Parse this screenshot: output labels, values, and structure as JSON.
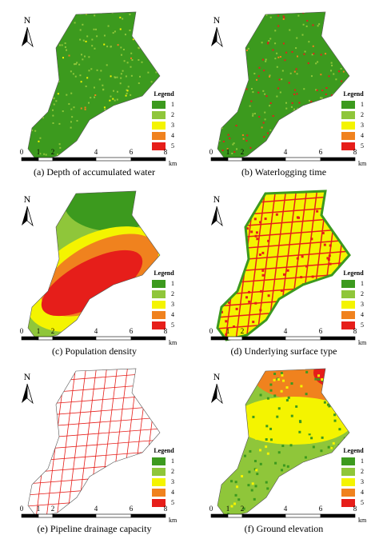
{
  "north": "N",
  "legend_title": "Legend",
  "legend_items": [
    "1",
    "2",
    "3",
    "4",
    "5"
  ],
  "legend_colors": [
    "#3c9a1e",
    "#8fc63a",
    "#f4f400",
    "#f0821e",
    "#e61e1a"
  ],
  "scale_labels": [
    "0",
    "1",
    "2",
    "4",
    "6",
    "8"
  ],
  "scale_unit": "km",
  "panels": [
    {
      "caption": "(a) Depth of accumulated water"
    },
    {
      "caption": "(b) Waterlogging time"
    },
    {
      "caption": "(c) Population density"
    },
    {
      "caption": "(d) Underlying surface type"
    },
    {
      "caption": "(e) Pipeline drainage capacity"
    },
    {
      "caption": "(f) Ground elevation"
    }
  ]
}
